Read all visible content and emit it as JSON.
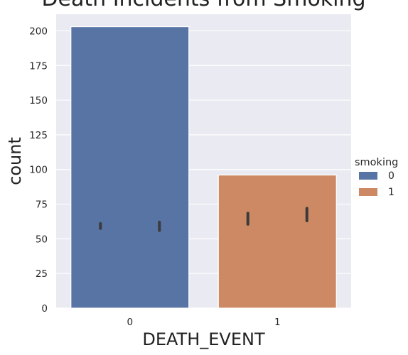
{
  "chart_data": {
    "type": "bar",
    "title": "Death Incidents from Smoking",
    "xlabel": "DEATH_EVENT",
    "ylabel": "count",
    "categories": [
      "0",
      "1"
    ],
    "values": [
      203,
      96
    ],
    "ylim": [
      0,
      212
    ],
    "yticks": [
      0,
      25,
      50,
      75,
      100,
      125,
      150,
      175,
      200
    ],
    "grid": true,
    "bar_colors": [
      "#5874a4",
      "#cd8963"
    ],
    "legend": {
      "title": "smoking",
      "placement": "right",
      "entries": [
        {
          "label": "0",
          "color": "#5874a4"
        },
        {
          "label": "1",
          "color": "#cd8963"
        }
      ]
    },
    "error_marks": [
      {
        "category": "0",
        "smoking": "0",
        "low": 57.5,
        "high": 61
      },
      {
        "category": "0",
        "smoking": "1",
        "low": 56,
        "high": 62
      },
      {
        "category": "1",
        "smoking": "0",
        "low": 60.5,
        "high": 68.5
      },
      {
        "category": "1",
        "smoking": "1",
        "low": 63,
        "high": 72
      }
    ]
  },
  "colors": {
    "plot_background": "#eaeaf2",
    "grid": "#ffffff",
    "error_mark": "#3b3b3b"
  }
}
